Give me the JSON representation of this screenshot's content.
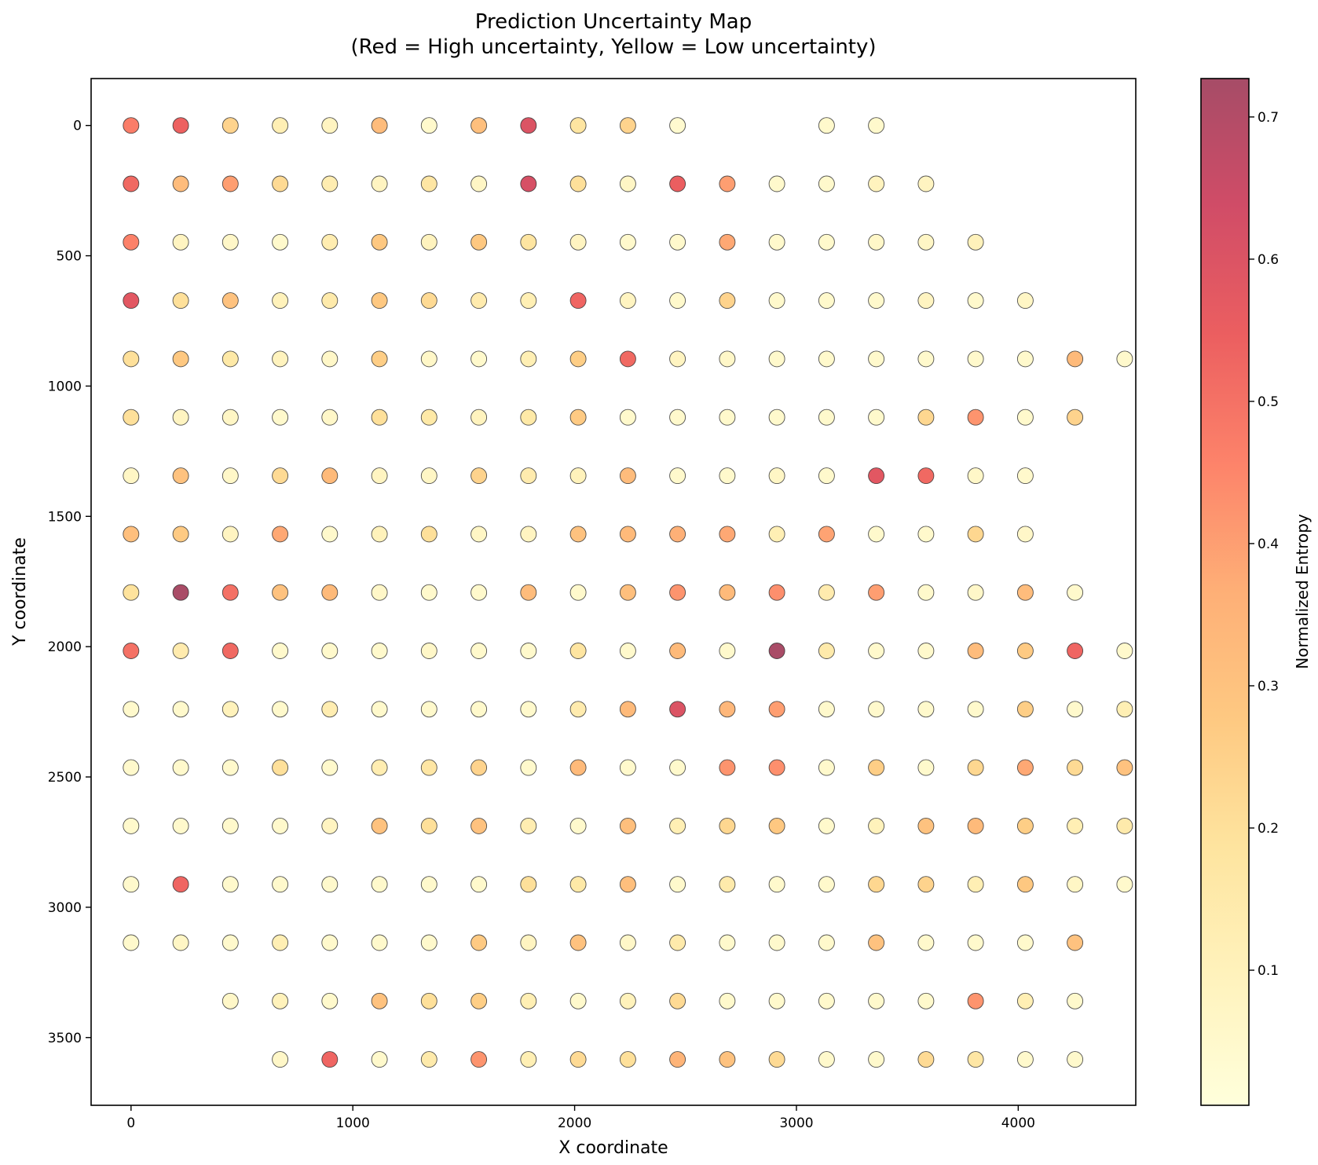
{
  "chart_data": {
    "type": "scatter",
    "title_line1": "Prediction Uncertainty Map",
    "title_line2": "(Red = High uncertainty, Yellow = Low uncertainty)",
    "xlabel": "X coordinate",
    "ylabel": "Y coordinate",
    "colorbar_label": "Normalized Entropy",
    "xlim": [
      -180,
      4530
    ],
    "ylim": [
      3760,
      -180
    ],
    "y_inverted": true,
    "grid": false,
    "x_ticks": [
      0,
      1000,
      2000,
      3000,
      4000
    ],
    "x_tick_labels": [
      "0",
      "1000",
      "2000",
      "3000",
      "4000"
    ],
    "y_ticks": [
      0,
      500,
      1000,
      1500,
      2000,
      2500,
      3000,
      3500
    ],
    "y_tick_labels": [
      "0",
      "500",
      "1000",
      "1500",
      "2000",
      "2500",
      "3000",
      "3500"
    ],
    "colorbar_range": [
      0.005,
      0.727
    ],
    "colorbar_ticks": [
      0.1,
      0.2,
      0.3,
      0.4,
      0.5,
      0.6,
      0.7
    ],
    "colorbar_tick_labels": [
      "0.1",
      "0.2",
      "0.3",
      "0.4",
      "0.5",
      "0.6",
      "0.7"
    ],
    "colormap": "YlOrRd",
    "colormap_stops": [
      "#ffffcc",
      "#ffeda0",
      "#fed976",
      "#feb24c",
      "#fd8d3c",
      "#fc4e2a",
      "#e31a1c",
      "#bd0026",
      "#800026"
    ],
    "marker_alpha": 0.7,
    "marker_edge_color": "#333333",
    "grid_x_spacing": 224,
    "grid_y_spacing": 224,
    "rows": [
      {
        "y": 0,
        "x_start": 0,
        "entropy": [
          0.47,
          0.54,
          0.24,
          0.12,
          0.08,
          0.32,
          0.05,
          0.31,
          0.6,
          0.18,
          0.24,
          0.04,
          null,
          null,
          0.05,
          0.05
        ]
      },
      {
        "y": 224,
        "x_start": 0,
        "entropy": [
          0.52,
          0.32,
          0.4,
          0.22,
          0.13,
          0.08,
          0.17,
          0.07,
          0.62,
          0.2,
          0.07,
          0.55,
          0.4,
          0.05,
          0.05,
          0.09,
          0.08
        ]
      },
      {
        "y": 448,
        "x_start": 0,
        "entropy": [
          0.46,
          0.08,
          0.06,
          0.05,
          0.13,
          0.28,
          0.09,
          0.28,
          0.18,
          0.08,
          0.05,
          0.05,
          0.38,
          0.05,
          0.05,
          0.06,
          0.07,
          0.1
        ]
      },
      {
        "y": 672,
        "x_start": 0,
        "entropy": [
          0.58,
          0.2,
          0.3,
          0.1,
          0.15,
          0.28,
          0.22,
          0.14,
          0.12,
          0.53,
          0.08,
          0.05,
          0.24,
          0.05,
          0.05,
          0.05,
          0.08,
          0.05,
          0.07
        ]
      },
      {
        "y": 896,
        "x_start": 0,
        "entropy": [
          0.2,
          0.28,
          0.16,
          0.09,
          0.06,
          0.26,
          0.06,
          0.05,
          0.12,
          0.26,
          0.52,
          0.08,
          0.06,
          0.05,
          0.05,
          0.05,
          0.05,
          0.05,
          0.05,
          0.33,
          0.05
        ]
      },
      {
        "y": 1120,
        "x_start": 0,
        "entropy": [
          0.2,
          0.08,
          0.07,
          0.05,
          0.06,
          0.2,
          0.16,
          0.09,
          0.16,
          0.27,
          0.05,
          0.05,
          0.05,
          0.05,
          0.05,
          0.05,
          0.23,
          0.42,
          0.05,
          0.24
        ]
      },
      {
        "y": 1344,
        "x_start": 0,
        "entropy": [
          0.07,
          0.3,
          0.06,
          0.22,
          0.33,
          0.08,
          0.07,
          0.24,
          0.14,
          0.1,
          0.32,
          0.05,
          0.05,
          0.07,
          0.05,
          0.58,
          0.52,
          0.06,
          0.05
        ]
      },
      {
        "y": 1568,
        "x_start": 0,
        "entropy": [
          0.31,
          0.27,
          0.08,
          0.38,
          0.05,
          0.1,
          0.2,
          0.07,
          0.08,
          0.3,
          0.33,
          0.36,
          0.38,
          0.12,
          0.39,
          0.05,
          0.05,
          0.23,
          0.06
        ]
      },
      {
        "y": 1792,
        "x_start": 0,
        "entropy": [
          0.19,
          0.72,
          0.5,
          0.3,
          0.33,
          0.06,
          0.05,
          0.05,
          0.32,
          0.05,
          0.31,
          0.42,
          0.33,
          0.43,
          0.14,
          0.4,
          0.05,
          0.06,
          0.32,
          0.05
        ]
      },
      {
        "y": 2016,
        "x_start": 0,
        "entropy": [
          0.5,
          0.14,
          0.52,
          0.05,
          0.05,
          0.05,
          0.06,
          0.05,
          0.05,
          0.18,
          0.05,
          0.33,
          0.05,
          0.72,
          0.15,
          0.05,
          0.05,
          0.32,
          0.27,
          0.53,
          0.05
        ]
      },
      {
        "y": 2240,
        "x_start": 0,
        "entropy": [
          0.05,
          0.05,
          0.1,
          0.05,
          0.13,
          0.05,
          0.05,
          0.05,
          0.05,
          0.14,
          0.33,
          0.6,
          0.34,
          0.4,
          0.05,
          0.05,
          0.05,
          0.05,
          0.26,
          0.05,
          0.12
        ]
      },
      {
        "y": 2464,
        "x_start": 0,
        "entropy": [
          0.05,
          0.05,
          0.05,
          0.2,
          0.05,
          0.13,
          0.17,
          0.24,
          0.05,
          0.33,
          0.05,
          0.05,
          0.42,
          0.43,
          0.05,
          0.26,
          0.05,
          0.23,
          0.38,
          0.22,
          0.3
        ]
      },
      {
        "y": 2688,
        "x_start": 0,
        "entropy": [
          0.05,
          0.05,
          0.05,
          0.05,
          0.08,
          0.3,
          0.2,
          0.3,
          0.13,
          0.05,
          0.31,
          0.12,
          0.23,
          0.28,
          0.05,
          0.1,
          0.3,
          0.33,
          0.26,
          0.12,
          0.15
        ]
      },
      {
        "y": 2912,
        "x_start": 0,
        "entropy": [
          0.05,
          0.53,
          0.05,
          0.05,
          0.05,
          0.05,
          0.05,
          0.05,
          0.2,
          0.16,
          0.31,
          0.05,
          0.15,
          0.05,
          0.05,
          0.23,
          0.24,
          0.12,
          0.28,
          0.07,
          0.05
        ]
      },
      {
        "y": 3136,
        "x_start": 0,
        "entropy": [
          0.05,
          0.07,
          0.05,
          0.12,
          0.05,
          0.05,
          0.05,
          0.27,
          0.08,
          0.3,
          0.06,
          0.15,
          0.05,
          0.05,
          0.05,
          0.3,
          0.05,
          0.05,
          0.05,
          0.3
        ]
      },
      {
        "y": 3360,
        "x_start": 448,
        "entropy": [
          0.06,
          0.1,
          0.05,
          0.3,
          0.2,
          0.26,
          0.12,
          0.05,
          0.1,
          0.22,
          0.05,
          0.05,
          0.05,
          0.05,
          0.05,
          0.42,
          0.12,
          0.05
        ]
      },
      {
        "y": 3584,
        "x_start": 672,
        "entropy": [
          0.06,
          0.53,
          0.05,
          0.15,
          0.42,
          0.12,
          0.22,
          0.2,
          0.35,
          0.3,
          0.22,
          0.05,
          0.05,
          0.22,
          0.17,
          0.05,
          0.05
        ]
      }
    ]
  }
}
